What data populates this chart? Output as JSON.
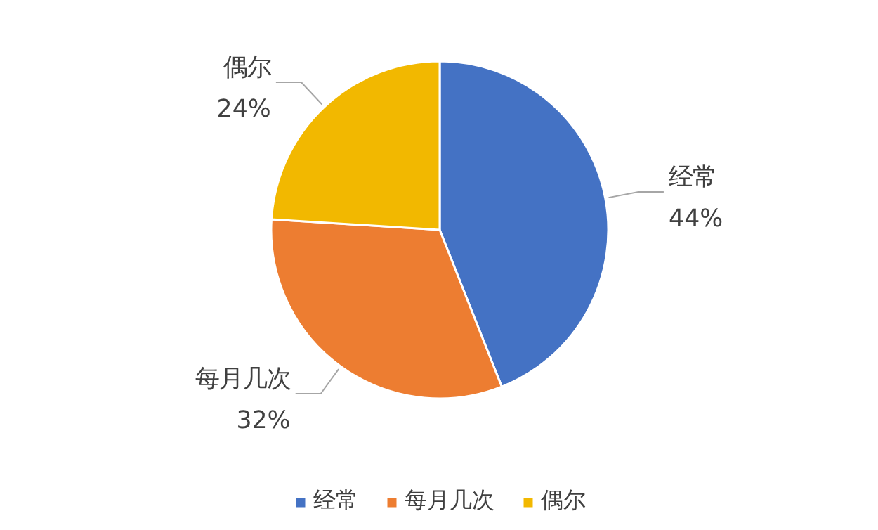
{
  "chart_data": {
    "type": "pie",
    "categories": [
      "经常",
      "每月几次",
      "偶尔"
    ],
    "values": [
      44,
      32,
      24
    ],
    "colors": [
      "#4472c4",
      "#ed7d31",
      "#f2b800"
    ],
    "value_labels": [
      "44%",
      "32%",
      "24%"
    ],
    "legend": "bottom"
  }
}
